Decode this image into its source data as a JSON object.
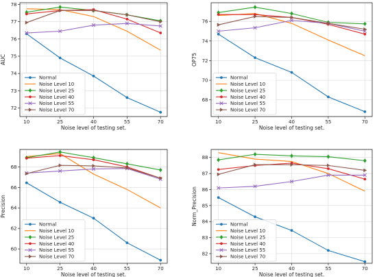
{
  "colors": {
    "Normal": "#1f77b4",
    "Noise Level 10": "#ff7f0e",
    "Noise Level 25": "#2ca02c",
    "Noise Level 40": "#d62728",
    "Noise Level 55": "#9467bd",
    "Noise Level 70": "#8c564b"
  },
  "markers": {
    "Normal": "dot",
    "Noise Level 10": "none",
    "Noise Level 25": "diamond",
    "Noise Level 40": "dot",
    "Noise Level 55": "x",
    "Noise Level 70": "tri-right"
  },
  "chart_data": [
    {
      "type": "line",
      "title": "",
      "xlabel": "Noise level of testing set.",
      "ylabel": "AUC",
      "x": [
        10,
        25,
        40,
        55,
        70
      ],
      "xticks": [
        10,
        25,
        40,
        55,
        70
      ],
      "ylim": [
        71.5,
        78.1
      ],
      "yticks": [
        72,
        73,
        74,
        75,
        76,
        77,
        78
      ],
      "grid": true,
      "legend": "lower-left",
      "series": [
        {
          "name": "Normal",
          "values": [
            76.3,
            74.9,
            73.85,
            72.6,
            71.75
          ]
        },
        {
          "name": "Noise Level 10",
          "values": [
            77.75,
            77.7,
            77.3,
            76.45,
            75.35
          ]
        },
        {
          "name": "Noise Level 25",
          "values": [
            77.55,
            77.85,
            77.65,
            77.4,
            77.05
          ]
        },
        {
          "name": "Noise Level 40",
          "values": [
            77.45,
            77.65,
            77.7,
            77.15,
            76.35
          ]
        },
        {
          "name": "Noise Level 55",
          "values": [
            76.35,
            76.45,
            76.8,
            76.9,
            76.75
          ]
        },
        {
          "name": "Noise Level 70",
          "values": [
            76.95,
            77.65,
            77.65,
            77.4,
            77.0
          ]
        }
      ]
    },
    {
      "type": "line",
      "title": "",
      "xlabel": "Noise level of testing set.",
      "ylabel": "OP75",
      "x": [
        10,
        25,
        40,
        55,
        70
      ],
      "xticks": [
        10,
        25,
        40,
        55,
        70
      ],
      "ylim": [
        66.3,
        77.9
      ],
      "yticks": [
        68,
        70,
        72,
        74,
        76
      ],
      "grid": true,
      "legend": "lower-left",
      "series": [
        {
          "name": "Normal",
          "values": [
            74.7,
            72.3,
            70.8,
            68.3,
            66.8
          ]
        },
        {
          "name": "Noise Level 10",
          "values": [
            76.6,
            76.8,
            75.8,
            74.1,
            72.5
          ]
        },
        {
          "name": "Noise Level 25",
          "values": [
            76.9,
            77.45,
            76.8,
            75.9,
            75.75
          ]
        },
        {
          "name": "Noise Level 40",
          "values": [
            76.7,
            76.7,
            76.4,
            75.7,
            74.7
          ]
        },
        {
          "name": "Noise Level 55",
          "values": [
            75.0,
            75.35,
            76.1,
            75.8,
            75.0
          ]
        },
        {
          "name": "Noise Level 70",
          "values": [
            75.65,
            76.5,
            76.4,
            75.8,
            75.2
          ]
        }
      ]
    },
    {
      "type": "line",
      "title": "",
      "xlabel": "Noise level of testing set.",
      "ylabel": "Precision",
      "x": [
        10,
        25,
        40,
        55,
        70
      ],
      "xticks": [
        10,
        25,
        40,
        55,
        70
      ],
      "ylim": [
        58.6,
        69.7
      ],
      "yticks": [
        60,
        62,
        64,
        66,
        68
      ],
      "grid": true,
      "legend": "lower-left",
      "series": [
        {
          "name": "Normal",
          "values": [
            66.45,
            64.55,
            63.0,
            60.6,
            58.9
          ]
        },
        {
          "name": "Noise Level 10",
          "values": [
            69.0,
            69.3,
            67.3,
            65.8,
            64.0
          ]
        },
        {
          "name": "Noise Level 25",
          "values": [
            68.9,
            69.45,
            68.9,
            68.3,
            67.7
          ]
        },
        {
          "name": "Noise Level 40",
          "values": [
            68.85,
            69.1,
            68.7,
            68.0,
            66.9
          ]
        },
        {
          "name": "Noise Level 55",
          "values": [
            67.4,
            67.6,
            67.8,
            67.85,
            66.8
          ]
        },
        {
          "name": "Noise Level 70",
          "values": [
            67.35,
            68.15,
            68.1,
            67.9,
            66.9
          ]
        }
      ]
    },
    {
      "type": "line",
      "title": "",
      "xlabel": "Noise level of testing set.",
      "ylabel": "Norm_Precision",
      "x": [
        10,
        25,
        40,
        55,
        70
      ],
      "xticks": [
        10,
        25,
        40,
        55,
        70
      ],
      "ylim": [
        81.4,
        88.5
      ],
      "yticks": [
        82,
        83,
        84,
        85,
        86,
        87,
        88
      ],
      "grid": true,
      "legend": "lower-left",
      "series": [
        {
          "name": "Normal",
          "values": [
            85.5,
            84.3,
            83.45,
            82.2,
            81.5
          ]
        },
        {
          "name": "Noise Level 10",
          "values": [
            88.3,
            87.9,
            87.75,
            87.0,
            85.9
          ]
        },
        {
          "name": "Noise Level 25",
          "values": [
            87.85,
            88.2,
            88.1,
            88.05,
            87.8
          ]
        },
        {
          "name": "Noise Level 40",
          "values": [
            87.25,
            87.5,
            87.65,
            87.3,
            86.65
          ]
        },
        {
          "name": "Noise Level 55",
          "values": [
            86.1,
            86.2,
            86.5,
            86.9,
            86.9
          ]
        },
        {
          "name": "Noise Level 70",
          "values": [
            86.95,
            87.55,
            87.55,
            87.5,
            87.2
          ]
        }
      ]
    }
  ]
}
